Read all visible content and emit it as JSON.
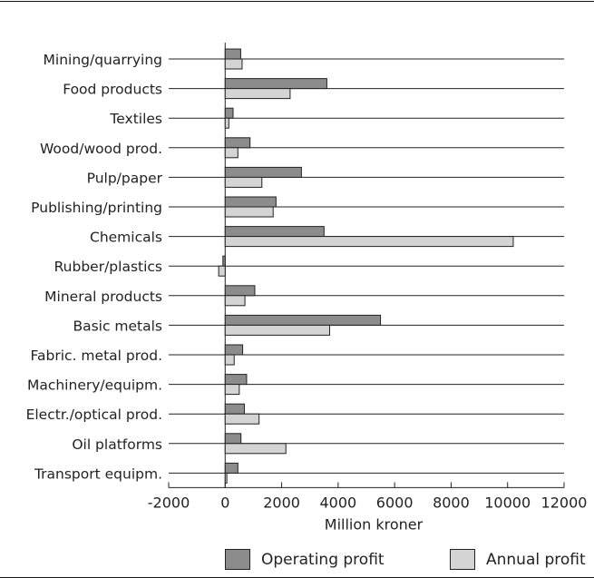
{
  "chart_data": {
    "type": "bar",
    "orientation": "horizontal",
    "categories": [
      "Mining/quarrying",
      "Food products",
      "Textiles",
      "Wood/wood prod.",
      "Pulp/paper",
      "Publishing/printing",
      "Chemicals",
      "Rubber/plastics",
      "Mineral products",
      "Basic metals",
      "Fabric. metal prod.",
      "Machinery/equipm.",
      "Electr./optical prod.",
      "Oil platforms",
      "Transport equipm."
    ],
    "series": [
      {
        "name": "Operating profit",
        "color": "#8c8c8c",
        "values": [
          550,
          3600,
          280,
          880,
          2700,
          1800,
          3500,
          -80,
          1050,
          5500,
          620,
          760,
          680,
          560,
          450
        ]
      },
      {
        "name": "Annual profit",
        "color": "#d4d4d4",
        "values": [
          600,
          2300,
          130,
          450,
          1300,
          1700,
          10200,
          -230,
          700,
          3700,
          320,
          500,
          1200,
          2150,
          60
        ]
      }
    ],
    "xlabel": "Million kroner",
    "xlim": [
      -2000,
      12000
    ],
    "xticks": [
      -2000,
      0,
      2000,
      4000,
      6000,
      8000,
      10000,
      12000
    ],
    "xtick_labels": [
      "-2000",
      "0",
      "2000",
      "4000",
      "6000",
      "8000",
      "10000",
      "12000"
    ],
    "grid": "horizontal lines at category positions",
    "legend_position": "bottom"
  }
}
